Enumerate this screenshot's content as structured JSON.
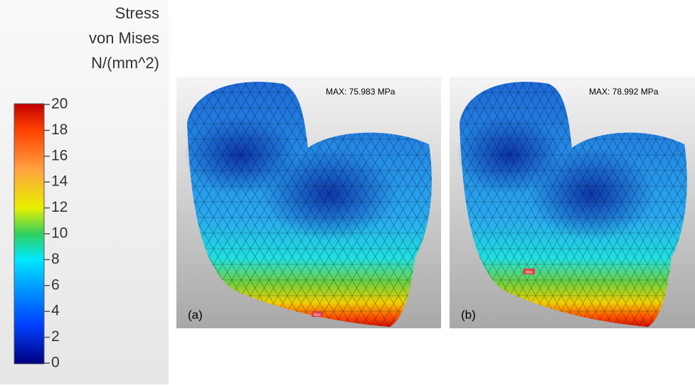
{
  "legend": {
    "title": [
      "Stress",
      "von Mises",
      "N/(mm^2)"
    ],
    "range": [
      0,
      20
    ],
    "ticks": [
      0,
      2,
      4,
      6,
      8,
      10,
      12,
      14,
      16,
      18,
      20
    ]
  },
  "panels": [
    {
      "max_label": "MAX: 75.983 MPa",
      "label": "(a)",
      "marker": "Max"
    },
    {
      "max_label": "MAX: 78.992 MPa",
      "label": "(b)",
      "marker": "Max"
    }
  ]
}
